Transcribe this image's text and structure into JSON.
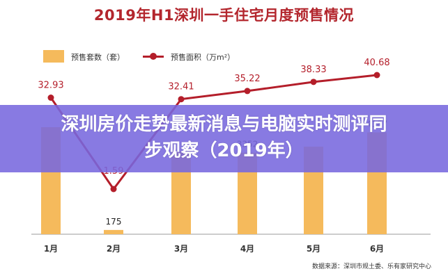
{
  "chart_data": {
    "type": "bar",
    "title": "2019年H1深圳一手住宅月度预售情况",
    "categories": [
      "1月",
      "2月",
      "3月",
      "4月",
      "5月",
      "6月"
    ],
    "series": [
      {
        "name": "预售套数（套）",
        "type": "bar",
        "color": "#F5BA5C",
        "values": [
          4400,
          175,
          3400,
          3352,
          3600,
          4187
        ],
        "labels": [
          "",
          "175",
          "",
          "3352",
          "",
          "4187"
        ]
      },
      {
        "name": "预售面积（万m²）",
        "type": "line",
        "color": "#B41E2A",
        "values": [
          32.93,
          1.59,
          32.41,
          35.22,
          38.33,
          40.68
        ],
        "labels": [
          "32.93",
          "1.59",
          "32.41",
          "35.22",
          "38.33",
          "40.68"
        ]
      }
    ],
    "xlabel": "",
    "ylabel": "",
    "grid": false,
    "legend_position": "top-left",
    "source": "数据来源：深圳市规土委、乐有家研究中心"
  },
  "title": "2019年H1深圳一手住宅月度预售情况",
  "legend": {
    "bar_label": "预售套数（套）",
    "line_label": "预售面积（万m²）"
  },
  "source": "数据来源：深圳市规土委、乐有家研究中心",
  "overlay": {
    "line1": "深圳房价走势最新消息与电脑实时测评同",
    "line2": "步观察（2019年）",
    "color": "#7868DE"
  }
}
